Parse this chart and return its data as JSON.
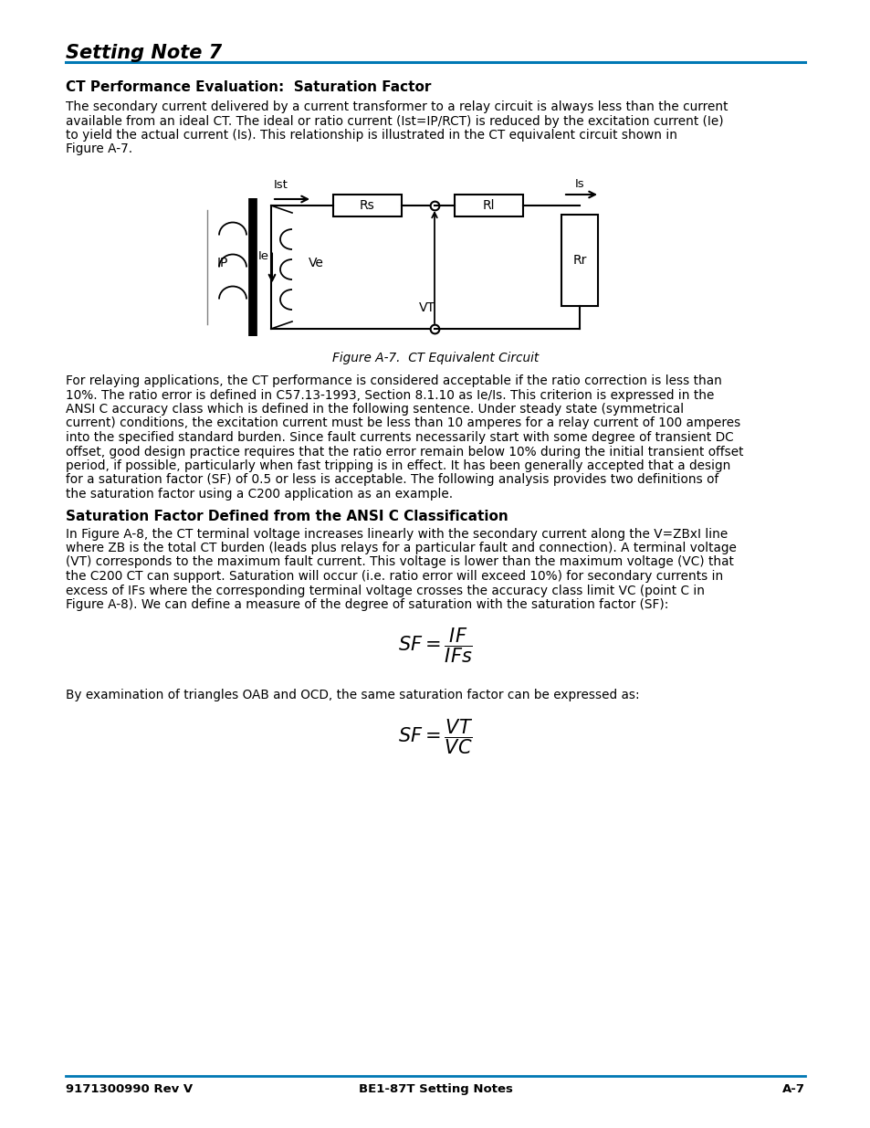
{
  "title": "Setting Note 7",
  "section1_heading": "CT Performance Evaluation:  Saturation Factor",
  "body1_line1": "The secondary current delivered by a current transformer to a relay circuit is always less than the current",
  "body1_line2": "available from an ideal CT. The ideal or ratio current (Ist=IP/RCT) is reduced by the excitation current (Ie)",
  "body1_line3": "to yield the actual current (Is). This relationship is illustrated in the CT equivalent circuit shown in",
  "body1_line4": "Figure A-7.",
  "fig_caption": "Figure A-7.  CT Equivalent Circuit",
  "section2_body_lines": [
    "For relaying applications, the CT performance is considered acceptable if the ratio correction is less than",
    "10%. The ratio error is defined in C57.13-1993, Section 8.1.10 as Ie/Is. This criterion is expressed in the",
    "ANSI C accuracy class which is defined in the following sentence. Under steady state (symmetrical",
    "current) conditions, the excitation current must be less than 10 amperes for a relay current of 100 amperes",
    "into the specified standard burden. Since fault currents necessarily start with some degree of transient DC",
    "offset, good design practice requires that the ratio error remain below 10% during the initial transient offset",
    "period, if possible, particularly when fast tripping is in effect. It has been generally accepted that a design",
    "for a saturation factor (SF) of 0.5 or less is acceptable. The following analysis provides two definitions of",
    "the saturation factor using a C200 application as an example."
  ],
  "section3_heading": "Saturation Factor Defined from the ANSI C Classification",
  "section3_body_lines": [
    "In Figure A-8, the CT terminal voltage increases linearly with the secondary current along the V=ZBxI line",
    "where ZB is the total CT burden (leads plus relays for a particular fault and connection). A terminal voltage",
    "(VT) corresponds to the maximum fault current. This voltage is lower than the maximum voltage (VC) that",
    "the C200 CT can support. Saturation will occur (i.e. ratio error will exceed 10%) for secondary currents in",
    "excess of IFs where the corresponding terminal voltage crosses the accuracy class limit VC (point C in",
    "Figure A-8). We can define a measure of the degree of saturation with the saturation factor (SF):"
  ],
  "formula2_intro": "By examination of triangles OAB and OCD, the same saturation factor can be expressed as:",
  "footer_left": "9171300990 Rev V",
  "footer_center": "BE1-87T Setting Notes",
  "footer_right": "A-7",
  "bg_color": "#ffffff",
  "text_color": "#000000",
  "accent_color": "#0078b4"
}
